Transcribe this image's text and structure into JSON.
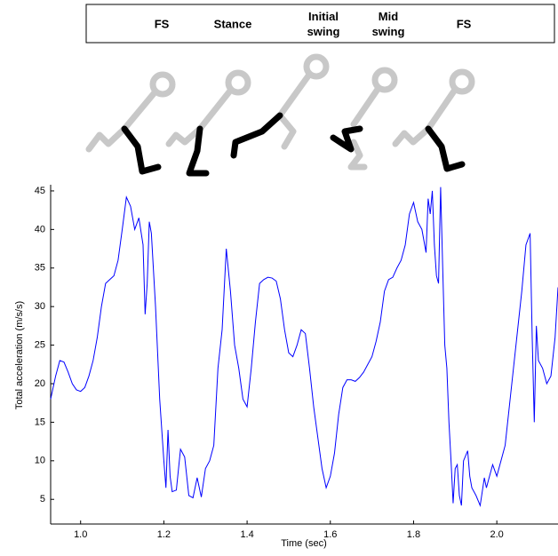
{
  "chart_data": {
    "type": "line",
    "phase_labels": [
      "FS",
      "Stance",
      "Initial swing",
      "Mid swing",
      "FS"
    ],
    "xlabel": "Time (sec)",
    "ylabel": "Total acceleration (m/s/s)",
    "color": "#0000ff",
    "xlim": [
      0.928,
      2.147
    ],
    "ylim": [
      1.8,
      45.8
    ],
    "xticks": [
      {
        "value": 1,
        "label": "1.0"
      },
      1.2,
      1.4,
      1.6,
      1.8,
      {
        "value": 2,
        "label": "2.0"
      }
    ],
    "yticks": [
      5,
      10,
      15,
      20,
      25,
      30,
      35,
      40,
      45
    ],
    "x": [
      0.928,
      0.94,
      0.95,
      0.96,
      0.97,
      0.98,
      0.99,
      1.0,
      1.01,
      1.02,
      1.03,
      1.04,
      1.05,
      1.06,
      1.07,
      1.08,
      1.09,
      1.1,
      1.11,
      1.12,
      1.13,
      1.14,
      1.15,
      1.155,
      1.16,
      1.165,
      1.17,
      1.18,
      1.19,
      1.2,
      1.205,
      1.21,
      1.215,
      1.22,
      1.23,
      1.24,
      1.25,
      1.26,
      1.27,
      1.28,
      1.29,
      1.3,
      1.31,
      1.32,
      1.33,
      1.34,
      1.35,
      1.36,
      1.37,
      1.38,
      1.39,
      1.4,
      1.41,
      1.42,
      1.43,
      1.44,
      1.45,
      1.46,
      1.47,
      1.48,
      1.49,
      1.5,
      1.51,
      1.52,
      1.53,
      1.54,
      1.55,
      1.56,
      1.57,
      1.58,
      1.59,
      1.6,
      1.61,
      1.62,
      1.63,
      1.64,
      1.65,
      1.66,
      1.67,
      1.68,
      1.69,
      1.7,
      1.71,
      1.72,
      1.73,
      1.74,
      1.75,
      1.76,
      1.77,
      1.78,
      1.79,
      1.8,
      1.81,
      1.82,
      1.83,
      1.835,
      1.84,
      1.845,
      1.85,
      1.855,
      1.86,
      1.865,
      1.87,
      1.875,
      1.88,
      1.885,
      1.89,
      1.895,
      1.9,
      1.905,
      1.91,
      1.915,
      1.92,
      1.93,
      1.935,
      1.94,
      1.95,
      1.96,
      1.97,
      1.975,
      1.98,
      1.99,
      2.0,
      2.02,
      2.04,
      2.06,
      2.07,
      2.08,
      2.085,
      2.09,
      2.095,
      2.1,
      2.11,
      2.12,
      2.13,
      2.14,
      2.147
    ],
    "values": [
      18,
      21,
      23,
      22.8,
      21.5,
      20,
      19.2,
      19,
      19.5,
      21,
      23,
      26,
      30,
      33,
      33.5,
      34,
      36,
      40,
      44.2,
      43,
      40,
      41.5,
      38,
      29,
      33,
      41,
      39.5,
      30,
      18,
      10,
      6.5,
      14,
      8,
      6,
      6.2,
      11.5,
      10.5,
      5.5,
      5.2,
      7.8,
      5.3,
      9,
      10,
      12,
      22,
      27,
      37.5,
      32,
      25,
      22,
      18,
      17,
      22,
      28,
      33,
      33.5,
      33.8,
      33.7,
      33.3,
      31,
      27,
      24,
      23.5,
      25,
      27,
      26.5,
      22,
      17,
      13,
      9,
      6.5,
      8,
      11,
      16,
      19.5,
      20.5,
      20.5,
      20.3,
      20.8,
      21.5,
      22.5,
      23.5,
      25.5,
      28,
      32,
      33.5,
      33.8,
      35,
      36,
      38,
      42,
      43.5,
      41,
      40,
      37,
      44,
      42,
      45,
      38,
      34,
      33,
      45.5,
      35,
      25,
      22,
      15,
      10,
      4.5,
      9,
      9.5,
      5.5,
      4.2,
      10,
      11.3,
      8,
      6.5,
      5.5,
      4.2,
      7.8,
      6.5,
      7.5,
      9.5,
      8,
      12,
      22,
      32,
      38,
      39.5,
      26,
      15,
      27.5,
      23,
      22,
      20,
      21,
      26,
      32.5
    ]
  }
}
